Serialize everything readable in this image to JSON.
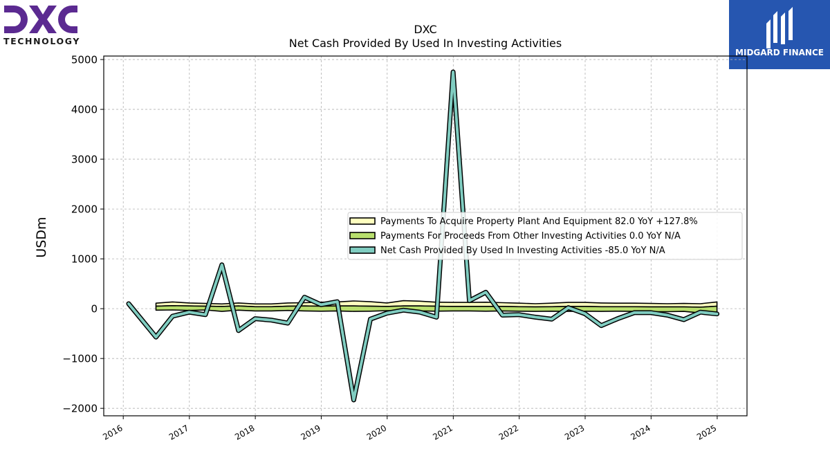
{
  "brand": {
    "left_logo_text": "TECHNOLOGY",
    "right_logo_text": "MIDGARD FINANCE",
    "dxc_purple": "#5b2a91",
    "midgard_blue": "#2656b0"
  },
  "chart_data": {
    "type": "area",
    "title": "DXC",
    "subtitle": "Net Cash Provided By Used In Investing Activities",
    "ylabel": "USDm",
    "xlabel": "",
    "ylim": [
      -2150,
      5070
    ],
    "xlim": [
      "2015-09-15",
      "2025-06-15"
    ],
    "grid": true,
    "legend_position": "center-right",
    "x_ticks": [
      "2016",
      "2017",
      "2018",
      "2019",
      "2020",
      "2021",
      "2022",
      "2023",
      "2024",
      "2025"
    ],
    "y_ticks": [
      "5000",
      "4000",
      "3000",
      "2000",
      "1000",
      "0",
      "−1000",
      "−2000"
    ],
    "y_tick_values": [
      5000,
      4000,
      3000,
      2000,
      1000,
      0,
      -1000,
      -2000
    ],
    "series": [
      {
        "name": "Payments To Acquire Property Plant And Equipment  82.0 YoY +127.8%",
        "kind": "band",
        "color": "#ffffbf",
        "x": [
          "2016-06-30",
          "2016-09-30",
          "2016-12-31",
          "2017-03-31",
          "2017-06-30",
          "2017-09-30",
          "2017-12-31",
          "2018-03-31",
          "2018-06-30",
          "2018-09-30",
          "2018-12-31",
          "2019-03-31",
          "2019-06-30",
          "2019-09-30",
          "2019-12-31",
          "2020-03-31",
          "2020-06-30",
          "2020-09-30",
          "2020-12-31",
          "2021-03-31",
          "2021-06-30",
          "2021-09-30",
          "2021-12-31",
          "2022-03-31",
          "2022-06-30",
          "2022-09-30",
          "2022-12-31",
          "2023-03-31",
          "2023-06-30",
          "2023-09-30",
          "2023-12-31",
          "2024-03-31",
          "2024-06-30",
          "2024-09-30",
          "2024-12-31"
        ],
        "upper": [
          110,
          135,
          115,
          105,
          95,
          115,
          95,
          95,
          115,
          120,
          130,
          135,
          155,
          140,
          115,
          160,
          150,
          130,
          125,
          125,
          130,
          120,
          110,
          100,
          110,
          125,
          125,
          115,
          110,
          110,
          105,
          100,
          105,
          100,
          135
        ],
        "lower": [
          50,
          60,
          55,
          50,
          45,
          55,
          40,
          40,
          50,
          55,
          50,
          55,
          55,
          50,
          45,
          55,
          55,
          50,
          45,
          45,
          45,
          45,
          40,
          35,
          40,
          45,
          45,
          40,
          40,
          40,
          35,
          35,
          35,
          30,
          50
        ]
      },
      {
        "name": "Payments For Proceeds From Other Investing Activities  0.0 YoY N/A",
        "kind": "band",
        "color": "#b8df6d",
        "x": [
          "2016-06-30",
          "2016-09-30",
          "2016-12-31",
          "2017-03-31",
          "2017-06-30",
          "2017-09-30",
          "2017-12-31",
          "2018-03-31",
          "2018-06-30",
          "2018-09-30",
          "2018-12-31",
          "2019-03-31",
          "2019-06-30",
          "2019-09-30",
          "2019-12-31",
          "2020-03-31",
          "2020-06-30",
          "2020-09-30",
          "2020-12-31",
          "2021-03-31",
          "2021-06-30",
          "2021-09-30",
          "2021-12-31",
          "2022-03-31",
          "2022-06-30",
          "2022-09-30",
          "2022-12-31",
          "2023-03-31",
          "2023-06-30",
          "2023-09-30",
          "2023-12-31",
          "2024-03-31",
          "2024-06-30",
          "2024-09-30",
          "2024-12-31"
        ],
        "upper": [
          50,
          60,
          55,
          50,
          45,
          55,
          40,
          40,
          50,
          55,
          50,
          55,
          55,
          50,
          45,
          55,
          55,
          50,
          45,
          45,
          45,
          45,
          40,
          35,
          40,
          45,
          45,
          40,
          40,
          40,
          35,
          35,
          35,
          30,
          50
        ],
        "lower": [
          -30,
          -25,
          -35,
          -25,
          -55,
          -30,
          -45,
          -45,
          -35,
          -45,
          -50,
          -45,
          -55,
          -50,
          -40,
          -40,
          -45,
          -50,
          -45,
          -45,
          -50,
          -45,
          -50,
          -55,
          -50,
          -55,
          -50,
          -55,
          -50,
          -55,
          -60,
          -60,
          -55,
          -85,
          -130
        ]
      },
      {
        "name": "Net Cash Provided By Used In Investing Activities  -85.0 YoY N/A",
        "kind": "line",
        "color": "#80cdc1",
        "x": [
          "2016-01-31",
          "2016-06-30",
          "2016-09-30",
          "2016-12-31",
          "2017-03-31",
          "2017-06-30",
          "2017-09-30",
          "2017-12-31",
          "2018-03-31",
          "2018-06-30",
          "2018-09-30",
          "2018-12-31",
          "2019-03-31",
          "2019-06-30",
          "2019-09-30",
          "2019-12-31",
          "2020-03-31",
          "2020-06-30",
          "2020-09-30",
          "2020-12-31",
          "2021-03-31",
          "2021-06-30",
          "2021-09-30",
          "2021-12-31",
          "2022-03-31",
          "2022-06-30",
          "2022-09-30",
          "2022-12-31",
          "2023-03-31",
          "2023-06-30",
          "2023-09-30",
          "2023-12-31",
          "2024-03-31",
          "2024-06-30",
          "2024-09-30",
          "2024-12-31"
        ],
        "values": [
          100,
          -570,
          -150,
          -70,
          -120,
          880,
          -440,
          -200,
          -230,
          -290,
          230,
          80,
          140,
          -1830,
          -210,
          -90,
          -30,
          -70,
          -170,
          4750,
          160,
          330,
          -130,
          -120,
          -170,
          -210,
          20,
          -100,
          -340,
          -200,
          -80,
          -80,
          -130,
          -220,
          -70,
          -105
        ]
      }
    ]
  }
}
